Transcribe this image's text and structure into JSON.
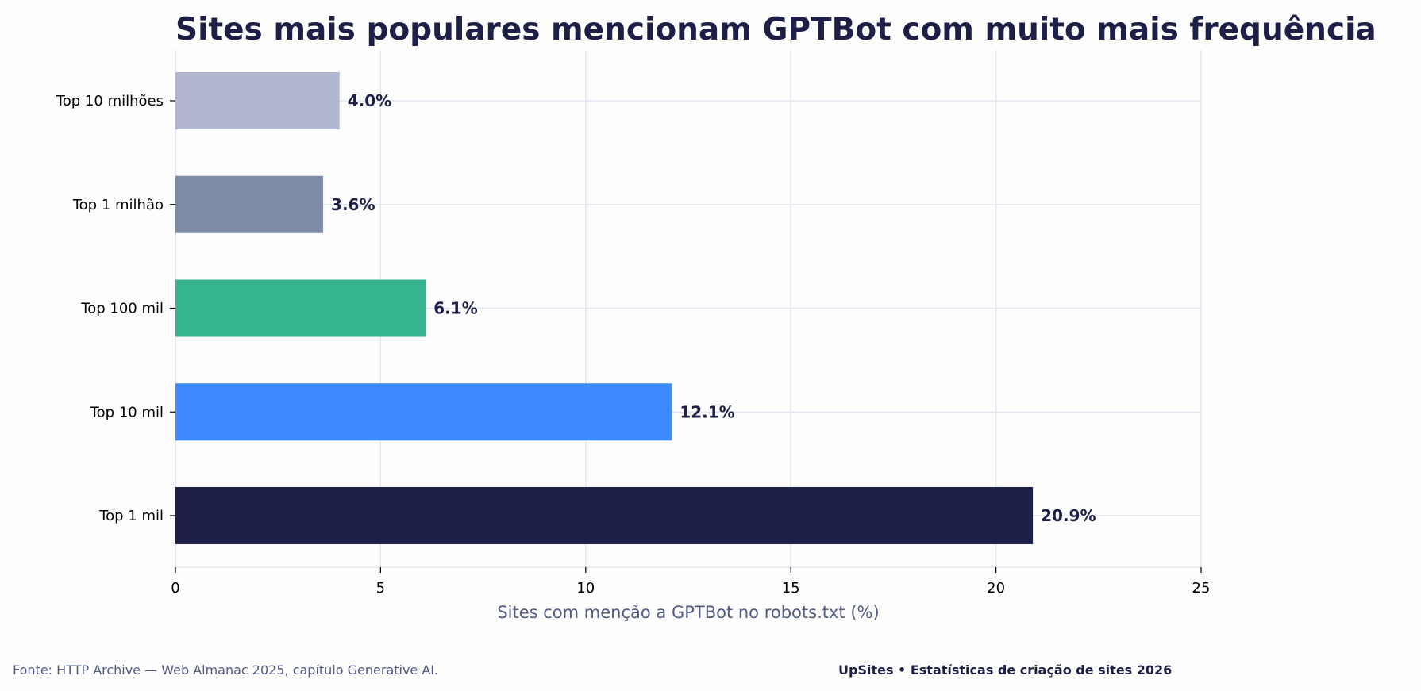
{
  "chart_data": {
    "type": "bar",
    "orientation": "horizontal",
    "title": "Sites mais populares mencionam GPTBot com muito mais frequência",
    "xlabel": "Sites com menção a GPTBot no robots.txt (%)",
    "ylabel": "",
    "categories": [
      "Top 1 mil",
      "Top 10 mil",
      "Top 100 mil",
      "Top 1 milhão",
      "Top 10 milhões"
    ],
    "values": [
      20.9,
      12.1,
      6.1,
      3.6,
      4.0
    ],
    "value_labels": [
      "20.9%",
      "12.1%",
      "6.1%",
      "3.6%",
      "4.0%"
    ],
    "colors": [
      "#1e1f47",
      "#3d8bff",
      "#36b48f",
      "#7f8aa6",
      "#b0b7cf"
    ],
    "xlim": [
      0,
      25
    ],
    "xticks": [
      0,
      5,
      10,
      15,
      20,
      25
    ],
    "grid": true
  },
  "footer": {
    "source": "Fonte: HTTP Archive — Web Almanac 2025, capítulo Generative AI.",
    "brand": "UpSites • Estatísticas de criação de sites 2026"
  },
  "theme": {
    "grid_color": "#e3e6f0",
    "axis_color": "#e3e6f0"
  }
}
